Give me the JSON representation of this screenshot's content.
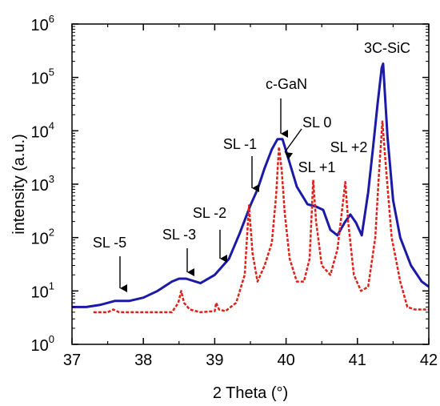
{
  "chart_data": {
    "type": "line",
    "title": "",
    "xlabel": "2 Theta (°)",
    "ylabel": "intensity (a.u.)",
    "xlim": [
      37,
      42
    ],
    "ylim": [
      1,
      1000000
    ],
    "yscale": "log",
    "x_ticks": [
      "37",
      "38",
      "39",
      "40",
      "41",
      "42"
    ],
    "y_ticks": [
      {
        "base": "10",
        "exp": "0"
      },
      {
        "base": "10",
        "exp": "1"
      },
      {
        "base": "10",
        "exp": "2"
      },
      {
        "base": "10",
        "exp": "3"
      },
      {
        "base": "10",
        "exp": "4"
      },
      {
        "base": "10",
        "exp": "5"
      },
      {
        "base": "10",
        "exp": "6"
      }
    ],
    "grid": false,
    "legend": "none",
    "series": [
      {
        "color": "#1a1aa6",
        "style": "solid",
        "x": [
          37.0,
          37.2,
          37.4,
          37.6,
          37.8,
          38.0,
          38.2,
          38.4,
          38.5,
          38.6,
          38.8,
          39.0,
          39.2,
          39.35,
          39.5,
          39.6,
          39.7,
          39.8,
          39.88,
          39.95,
          40.05,
          40.15,
          40.3,
          40.42,
          40.52,
          40.62,
          40.72,
          40.82,
          40.9,
          40.98,
          41.06,
          41.15,
          41.22,
          41.28,
          41.34,
          41.36,
          41.42,
          41.5,
          41.6,
          41.75,
          41.9,
          42.0
        ],
        "y": [
          5,
          5,
          5.5,
          6.5,
          6.5,
          7.5,
          10,
          15,
          17,
          17,
          14,
          20,
          40,
          120,
          400,
          800,
          2000,
          4500,
          7000,
          7000,
          2500,
          900,
          420,
          380,
          330,
          140,
          110,
          190,
          270,
          190,
          110,
          700,
          5000,
          30000,
          150000,
          180000,
          8000,
          500,
          100,
          30,
          15,
          12
        ]
      },
      {
        "color": "#e0201a",
        "style": "dashed",
        "x": [
          37.3,
          37.5,
          37.58,
          37.66,
          37.8,
          38.0,
          38.2,
          38.4,
          38.49,
          38.53,
          38.57,
          38.65,
          38.8,
          39.0,
          39.02,
          39.06,
          39.15,
          39.3,
          39.42,
          39.48,
          39.53,
          39.6,
          39.7,
          39.8,
          39.86,
          39.9,
          39.94,
          39.98,
          40.05,
          40.15,
          40.25,
          40.33,
          40.38,
          40.42,
          40.5,
          40.62,
          40.72,
          40.8,
          40.83,
          40.87,
          40.95,
          41.05,
          41.15,
          41.25,
          41.3,
          41.35,
          41.4,
          41.48,
          41.6,
          41.7,
          41.8,
          42.0
        ],
        "y": [
          4,
          4,
          4.5,
          4,
          4,
          4,
          4,
          4,
          6,
          10,
          6,
          4.5,
          4,
          4.2,
          6,
          4.5,
          4.2,
          6,
          20,
          400,
          50,
          15,
          30,
          80,
          600,
          5000,
          1800,
          300,
          40,
          15,
          15,
          40,
          1200,
          200,
          30,
          20,
          60,
          500,
          1100,
          200,
          20,
          10,
          12,
          100,
          1500,
          15000,
          2000,
          100,
          15,
          5,
          4.5,
          4.5
        ]
      }
    ],
    "annotations": [
      {
        "label": "SL -5",
        "x": 37.58,
        "y": 6.5
      },
      {
        "label": "SL -3",
        "x": 38.53,
        "y": 12
      },
      {
        "label": "SL -2",
        "x": 39.02,
        "y": 20
      },
      {
        "label": "SL -1",
        "x": 39.5,
        "y": 500
      },
      {
        "label": "c-GaN",
        "x": 39.88,
        "y": 7000
      },
      {
        "label": "SL 0",
        "x": 39.92,
        "y": 2000
      },
      {
        "label": "SL +1",
        "x": 40.38,
        "y": 1200
      },
      {
        "label": "SL +2",
        "x": 40.85,
        "y": 1100
      },
      {
        "label": "3C-SiC",
        "x": 41.36,
        "y": 180000
      }
    ]
  }
}
